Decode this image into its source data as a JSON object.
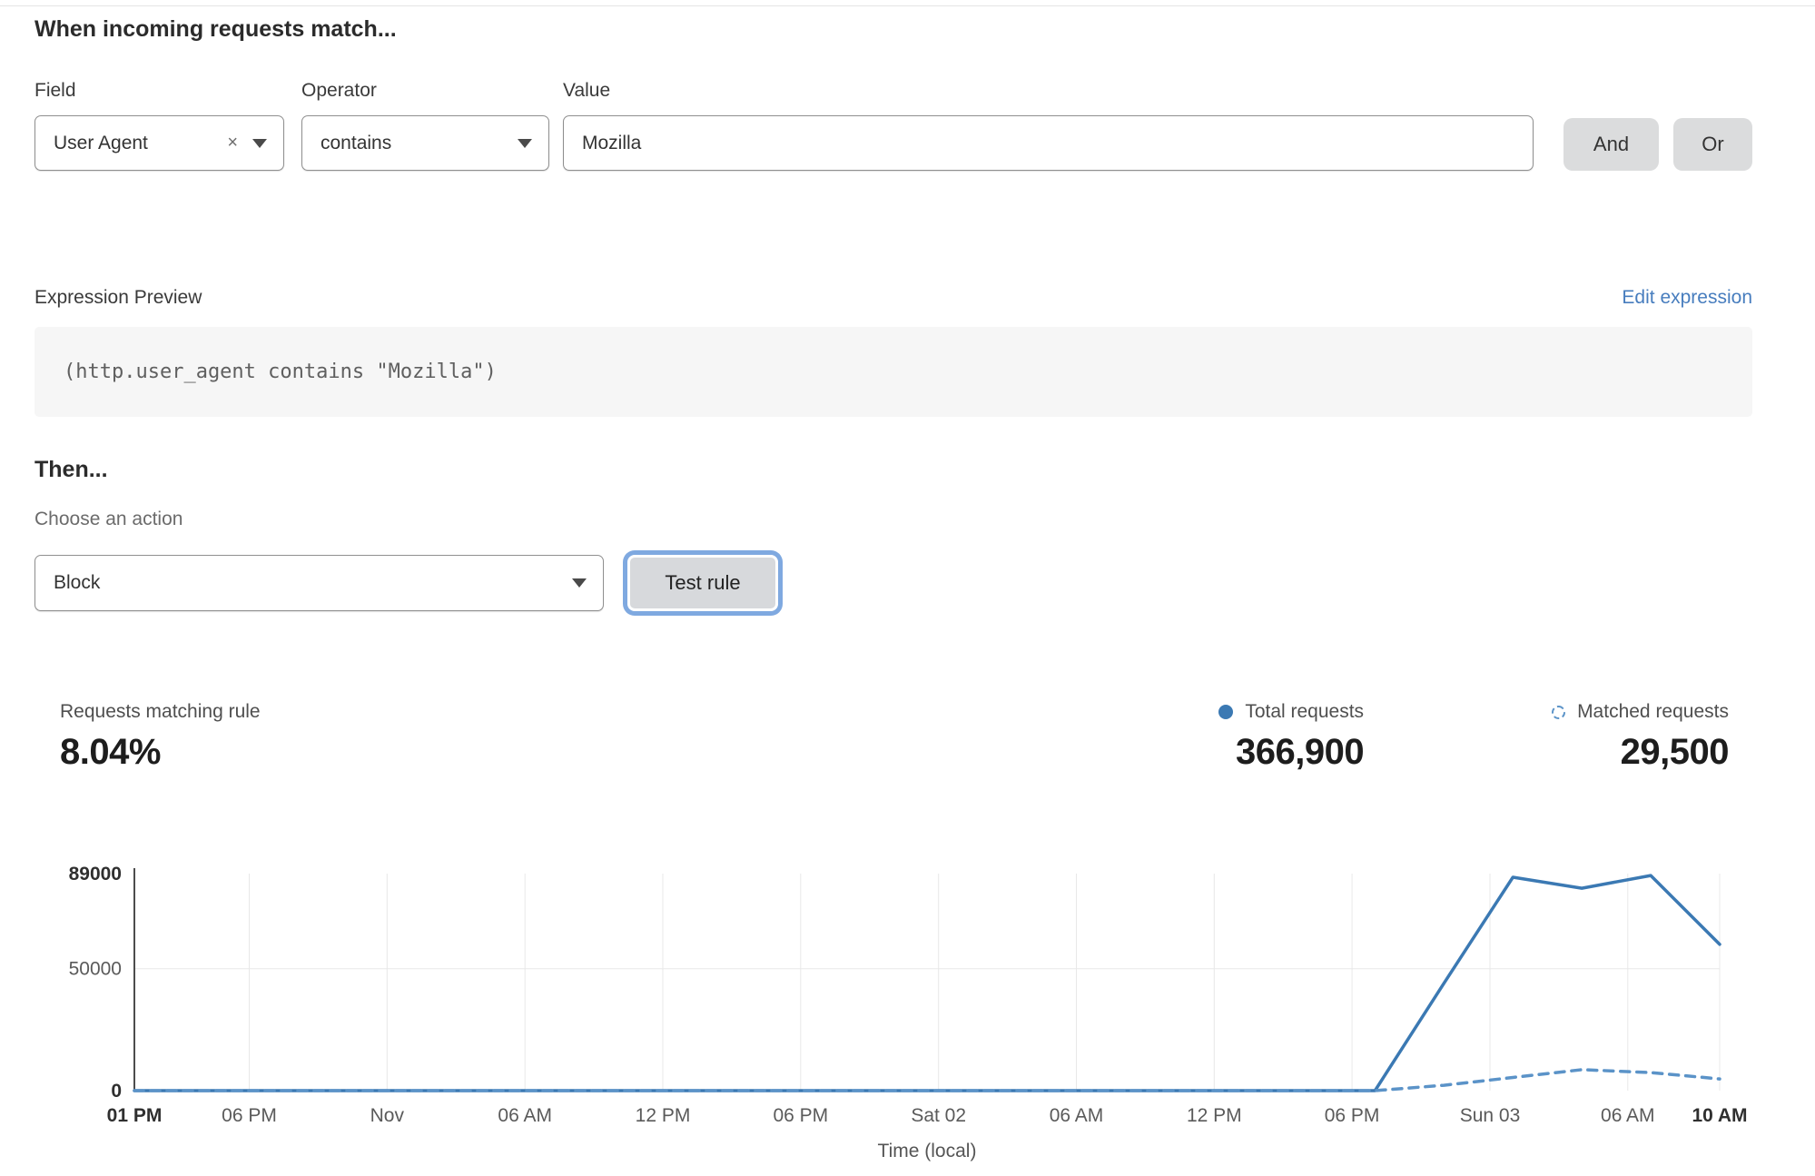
{
  "rule_builder": {
    "heading": "When incoming requests match...",
    "field": {
      "label": "Field",
      "value": "User Agent",
      "clear_glyph": "×"
    },
    "operator": {
      "label": "Operator",
      "value": "contains"
    },
    "value": {
      "label": "Value",
      "value": "Mozilla"
    },
    "and_label": "And",
    "or_label": "Or"
  },
  "expression": {
    "label": "Expression Preview",
    "edit_link": "Edit expression",
    "code": "(http.user_agent contains \"Mozilla\")"
  },
  "action": {
    "heading": "Then...",
    "label": "Choose an action",
    "value": "Block",
    "test_button": "Test rule"
  },
  "stats": {
    "matching": {
      "label": "Requests matching rule",
      "value": "8.04%"
    },
    "total": {
      "label": "Total requests",
      "value": "366,900"
    },
    "matched": {
      "label": "Matched requests",
      "value": "29,500"
    }
  },
  "colors": {
    "solid_line": "#3b79b3",
    "dashed_line": "#5b93c8",
    "link": "#477dbe",
    "focus_ring": "#7fa9e0"
  },
  "chart_data": {
    "type": "line",
    "title": "",
    "xlabel": "Time (local)",
    "ylabel": "",
    "ylim": [
      0,
      89000
    ],
    "x_total_hours": 69,
    "grid": true,
    "legend_position": "top-right",
    "yticks": [
      {
        "value": 0,
        "label": "0",
        "bold": true
      },
      {
        "value": 50000,
        "label": "50000",
        "bold": false
      },
      {
        "value": 89000,
        "label": "89000",
        "bold": true
      }
    ],
    "xticks": [
      {
        "h": 0,
        "label": "01 PM",
        "bold": true
      },
      {
        "h": 5,
        "label": "06 PM",
        "bold": false
      },
      {
        "h": 11,
        "label": "Nov",
        "bold": false
      },
      {
        "h": 17,
        "label": "06 AM",
        "bold": false
      },
      {
        "h": 23,
        "label": "12 PM",
        "bold": false
      },
      {
        "h": 29,
        "label": "06 PM",
        "bold": false
      },
      {
        "h": 35,
        "label": "Sat 02",
        "bold": false
      },
      {
        "h": 41,
        "label": "06 AM",
        "bold": false
      },
      {
        "h": 47,
        "label": "12 PM",
        "bold": false
      },
      {
        "h": 53,
        "label": "06 PM",
        "bold": false
      },
      {
        "h": 59,
        "label": "Sun 03",
        "bold": false
      },
      {
        "h": 65,
        "label": "06 AM",
        "bold": false
      },
      {
        "h": 69,
        "label": "10 AM",
        "bold": true
      }
    ],
    "series": [
      {
        "name": "Total requests",
        "style": "solid",
        "color": "#3b79b3",
        "points": [
          [
            0,
            0
          ],
          [
            6,
            0
          ],
          [
            12,
            0
          ],
          [
            18,
            0
          ],
          [
            24,
            0
          ],
          [
            30,
            0
          ],
          [
            36,
            0
          ],
          [
            42,
            0
          ],
          [
            48,
            0
          ],
          [
            54,
            0
          ],
          [
            57,
            44000
          ],
          [
            60,
            87500
          ],
          [
            63,
            83000
          ],
          [
            66,
            88200
          ],
          [
            69,
            60000
          ]
        ]
      },
      {
        "name": "Matched requests",
        "style": "dashed",
        "color": "#5b93c8",
        "points": [
          [
            0,
            0
          ],
          [
            6,
            0
          ],
          [
            12,
            0
          ],
          [
            18,
            0
          ],
          [
            24,
            0
          ],
          [
            30,
            0
          ],
          [
            36,
            0
          ],
          [
            42,
            0
          ],
          [
            48,
            0
          ],
          [
            54,
            0
          ],
          [
            57,
            2200
          ],
          [
            60,
            5400
          ],
          [
            63,
            8600
          ],
          [
            66,
            7400
          ],
          [
            69,
            4800
          ]
        ]
      }
    ]
  }
}
